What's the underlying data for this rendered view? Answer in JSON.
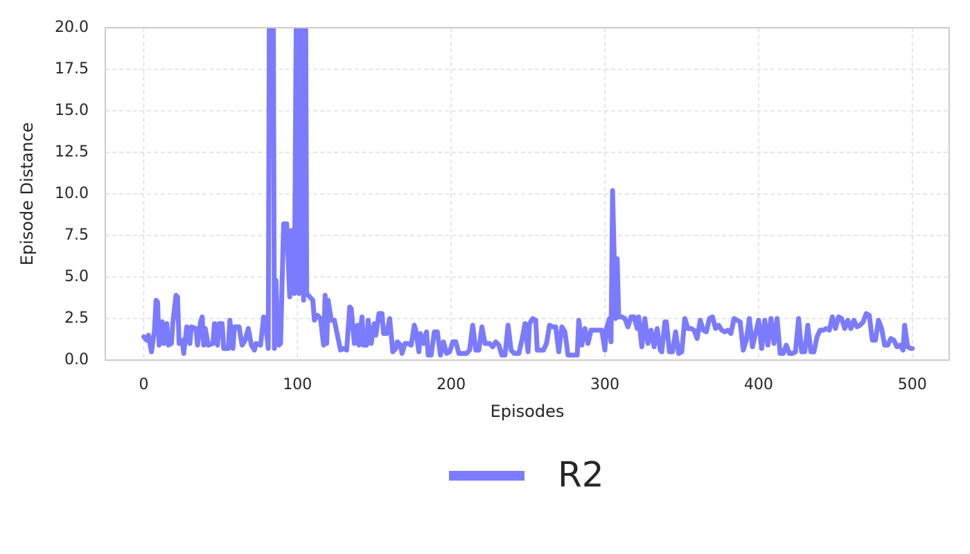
{
  "chart_data": {
    "type": "line",
    "xlabel": "Episodes",
    "ylabel": "Episode Distance",
    "xlim": [
      -25,
      524
    ],
    "ylim": [
      0,
      20
    ],
    "xticks": [
      0,
      100,
      200,
      300,
      400,
      500
    ],
    "yticks": [
      {
        "value": 0,
        "label": "0.0"
      },
      2.5,
      {
        "value": 5,
        "label": "5.0"
      },
      7.5,
      {
        "value": 10,
        "label": "10.0"
      },
      12.5,
      {
        "value": 15,
        "label": "15.0"
      },
      17.5,
      {
        "value": 20,
        "label": "20.0"
      }
    ],
    "grid": true,
    "legend": "bottom",
    "x": [
      0,
      2,
      3,
      5,
      7,
      8,
      9,
      10,
      12,
      13,
      15,
      16,
      18,
      19,
      21,
      22,
      23,
      25,
      26,
      28,
      30,
      31,
      34,
      35,
      37,
      38,
      39,
      40,
      42,
      45,
      46,
      48,
      49,
      51,
      52,
      55,
      56,
      58,
      59,
      62,
      64,
      66,
      68,
      70,
      72,
      73,
      76,
      78,
      79,
      81,
      82,
      84,
      85,
      86,
      87,
      88,
      89,
      91,
      93,
      95,
      96,
      98,
      99,
      100,
      101,
      103,
      104,
      105,
      106,
      108,
      110,
      111,
      113,
      115,
      117,
      118,
      119,
      120,
      122,
      124,
      126,
      128,
      130,
      132,
      134,
      135,
      137,
      139,
      140,
      142,
      143,
      145,
      146,
      148,
      150,
      151,
      153,
      155,
      156,
      158,
      160,
      162,
      164,
      165,
      167,
      168,
      170,
      172,
      174,
      176,
      177,
      179,
      180,
      182,
      184,
      185,
      187,
      189,
      191,
      193,
      195,
      197,
      199,
      201,
      203,
      205,
      208,
      210,
      212,
      214,
      216,
      218,
      220,
      222,
      225,
      227,
      229,
      231,
      233,
      235,
      237,
      239,
      241,
      244,
      246,
      248,
      250,
      251,
      253,
      255,
      256,
      258,
      260,
      262,
      264,
      266,
      268,
      270,
      272,
      274,
      276,
      278,
      280,
      282,
      283,
      285,
      287,
      289,
      291,
      294,
      296,
      298,
      300,
      301,
      303,
      304,
      305,
      307,
      308,
      309,
      311,
      313,
      315,
      317,
      319,
      321,
      322,
      324,
      326,
      328,
      330,
      332,
      334,
      336,
      337,
      339,
      340,
      342,
      344,
      346,
      348,
      350,
      352,
      354,
      356,
      358,
      360,
      362,
      364,
      366,
      368,
      370,
      372,
      374,
      376,
      378,
      380,
      382,
      384,
      386,
      388,
      390,
      392,
      394,
      396,
      398,
      400,
      402,
      404,
      406,
      408,
      410,
      412,
      414,
      416,
      418,
      420,
      422,
      424,
      426,
      428,
      430,
      432,
      434,
      436,
      438,
      440,
      442,
      444,
      446,
      448,
      450,
      452,
      454,
      456,
      458,
      460,
      462,
      464,
      466,
      468,
      470,
      472,
      474,
      476,
      478,
      480,
      482,
      484,
      486,
      488,
      490,
      492,
      494,
      495,
      496,
      497,
      499,
      500
    ],
    "series": [
      {
        "name": "R2",
        "color": "#7b7bff",
        "values": [
          1.4,
          1.2,
          1.5,
          0.5,
          1.8,
          3.6,
          3.5,
          0.9,
          2.3,
          1.0,
          2.2,
          0.9,
          1.0,
          2.3,
          3.9,
          3.8,
          1.0,
          1.2,
          0.4,
          2.0,
          1.0,
          2.0,
          1.9,
          0.9,
          2.3,
          2.6,
          0.9,
          1.9,
          0.9,
          1.0,
          2.2,
          0.9,
          2.2,
          2.2,
          0.7,
          0.7,
          2.4,
          0.7,
          2.0,
          2.0,
          0.9,
          1.2,
          1.9,
          0.9,
          0.6,
          1.0,
          0.9,
          2.6,
          2.5,
          0.7,
          30,
          30,
          0.7,
          4.8,
          2.0,
          0.9,
          1.0,
          8.2,
          8.2,
          3.8,
          7.8,
          4.0,
          17.7,
          30,
          4.0,
          30,
          3.6,
          30,
          4.0,
          3.8,
          3.6,
          2.4,
          2.7,
          2.5,
          0.9,
          3.9,
          1.0,
          3.6,
          2.4,
          2.4,
          1.5,
          0.6,
          0.7,
          0.6,
          3.2,
          3.1,
          1.0,
          2.1,
          0.9,
          2.6,
          0.9,
          0.9,
          2.4,
          1.0,
          2.2,
          1.5,
          2.8,
          2.8,
          1.6,
          1.6,
          2.5,
          0.5,
          0.7,
          1.1,
          0.9,
          0.4,
          1.0,
          1.0,
          0.9,
          2.1,
          1.8,
          0.5,
          1.6,
          1.0,
          1.7,
          0.3,
          0.3,
          1.7,
          1.7,
          0.3,
          1.1,
          0.4,
          0.5,
          1.1,
          1.1,
          0.4,
          0.4,
          0.4,
          0.6,
          2.1,
          0.6,
          0.6,
          2.0,
          1.0,
          1.0,
          0.8,
          1.1,
          0.9,
          0.3,
          0.3,
          2.1,
          0.6,
          0.4,
          0.4,
          1.2,
          2.2,
          0.5,
          2.2,
          2.5,
          2.4,
          0.6,
          0.6,
          0.6,
          1.0,
          2.1,
          2.0,
          2.0,
          0.5,
          2.0,
          1.7,
          0.3,
          0.3,
          0.3,
          0.3,
          2.4,
          0.9,
          1.9,
          1.0,
          1.8,
          1.8,
          1.8,
          1.8,
          0.6,
          1.9,
          2.5,
          1.1,
          10.2,
          2.5,
          6.1,
          2.6,
          2.6,
          2.5,
          2.0,
          2.6,
          2.6,
          1.9,
          2.6,
          0.8,
          2.5,
          1.0,
          1.8,
          0.8,
          1.9,
          0.6,
          0.5,
          2.3,
          2.3,
          0.5,
          0.5,
          1.7,
          0.4,
          0.5,
          2.5,
          1.9,
          1.9,
          1.8,
          1.3,
          2.4,
          1.8,
          1.7,
          2.5,
          2.6,
          1.9,
          2.1,
          1.8,
          1.7,
          1.8,
          1.6,
          2.5,
          2.4,
          2.3,
          0.6,
          1.2,
          2.5,
          0.8,
          1.6,
          2.4,
          0.7,
          2.4,
          0.9,
          2.5,
          1.0,
          2.5,
          0.4,
          0.4,
          0.9,
          0.4,
          0.4,
          0.5,
          2.5,
          0.5,
          0.5,
          2.1,
          0.5,
          0.5,
          1.4,
          1.8,
          1.8,
          1.9,
          1.8,
          2.6,
          1.9,
          2.6,
          2.5,
          1.9,
          2.4,
          1.9,
          2.4,
          2.0,
          2.1,
          2.3,
          2.8,
          2.7,
          1.2,
          1.2,
          2.4,
          1.9,
          0.9,
          0.9,
          1.3,
          1.2,
          0.8,
          0.9,
          0.6,
          2.1,
          1.4,
          0.8,
          0.7,
          0.7
        ]
      }
    ]
  }
}
